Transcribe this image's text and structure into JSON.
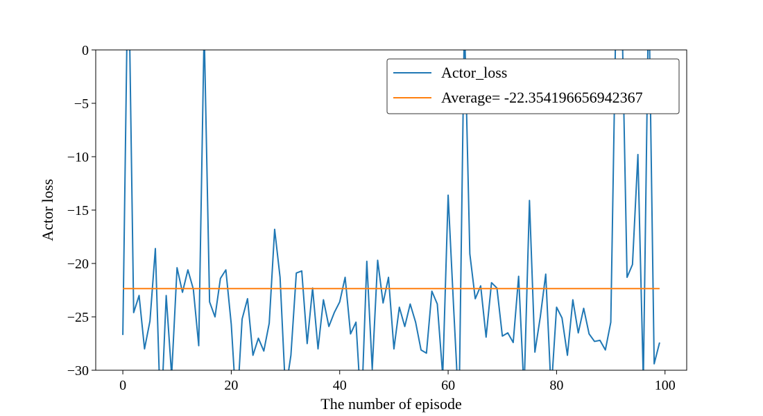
{
  "chart_data": {
    "type": "line",
    "title": "",
    "xlabel": "The number of episode",
    "ylabel": "Actor loss",
    "xlim": [
      -5,
      104
    ],
    "ylim": [
      -30,
      0
    ],
    "xticks": [
      0,
      20,
      40,
      60,
      80,
      100
    ],
    "yticks": [
      0,
      -5,
      -10,
      -15,
      -20,
      -25,
      -30
    ],
    "xtick_labels": [
      "0",
      "20",
      "40",
      "60",
      "80",
      "100"
    ],
    "ytick_labels": [
      "0",
      "−5",
      "−10",
      "−15",
      "−20",
      "−25",
      "−30"
    ],
    "grid": false,
    "legend_position": "top-right",
    "series": [
      {
        "name": "Actor_loss",
        "color": "#1f77b4",
        "x": [
          0,
          1,
          2,
          3,
          4,
          5,
          6,
          7,
          8,
          9,
          10,
          11,
          12,
          13,
          14,
          15,
          16,
          17,
          18,
          19,
          20,
          21,
          22,
          23,
          24,
          25,
          26,
          27,
          28,
          29,
          30,
          31,
          32,
          33,
          34,
          35,
          36,
          37,
          38,
          39,
          40,
          41,
          42,
          43,
          44,
          45,
          46,
          47,
          48,
          49,
          50,
          51,
          52,
          53,
          54,
          55,
          56,
          57,
          58,
          59,
          60,
          61,
          62,
          63,
          64,
          65,
          66,
          67,
          68,
          69,
          70,
          71,
          72,
          73,
          74,
          75,
          76,
          77,
          78,
          79,
          80,
          81,
          82,
          83,
          84,
          85,
          86,
          87,
          88,
          89,
          90,
          91,
          92,
          93,
          94,
          95,
          96,
          97,
          98,
          99
        ],
        "values": [
          -26.7,
          10,
          -24.6,
          -23.0,
          -28.0,
          -25.4,
          -18.6,
          -35,
          -23.0,
          -30.5,
          -20.4,
          -22.7,
          -20.6,
          -22.4,
          -27.7,
          2,
          -23.6,
          -25.0,
          -21.4,
          -20.6,
          -25.7,
          -34,
          -25.2,
          -23.3,
          -28.6,
          -27.0,
          -28.2,
          -25.6,
          -16.8,
          -21.3,
          -32,
          -28.6,
          -20.9,
          -20.7,
          -27.5,
          -22.3,
          -28.0,
          -23.4,
          -25.9,
          -24.6,
          -23.6,
          -21.3,
          -26.6,
          -25.5,
          -34,
          -19.8,
          -29.9,
          -19.7,
          -23.7,
          -21.3,
          -28.0,
          -24.1,
          -25.9,
          -23.8,
          -25.5,
          -28.1,
          -28.4,
          -22.6,
          -23.8,
          -30.5,
          -13.6,
          -24.0,
          -34,
          3,
          -19.1,
          -23.3,
          -22.1,
          -26.9,
          -21.8,
          -22.3,
          -26.8,
          -26.5,
          -27.4,
          -21.2,
          -32,
          -14.1,
          -28.3,
          -25.0,
          -21.0,
          -32,
          -24.1,
          -25.1,
          -28.6,
          -23.4,
          -26.5,
          -24.2,
          -26.6,
          -27.3,
          -27.2,
          -28.1,
          -25.5,
          5,
          5,
          -21.3,
          -20.1,
          -9.8,
          -31,
          6,
          -29.4,
          -27.4
        ]
      },
      {
        "name": "Average= -22.354196656942367",
        "color": "#ff7f0e",
        "x": [
          0,
          99
        ],
        "values": [
          -22.354196656942367,
          -22.354196656942367
        ]
      }
    ]
  }
}
